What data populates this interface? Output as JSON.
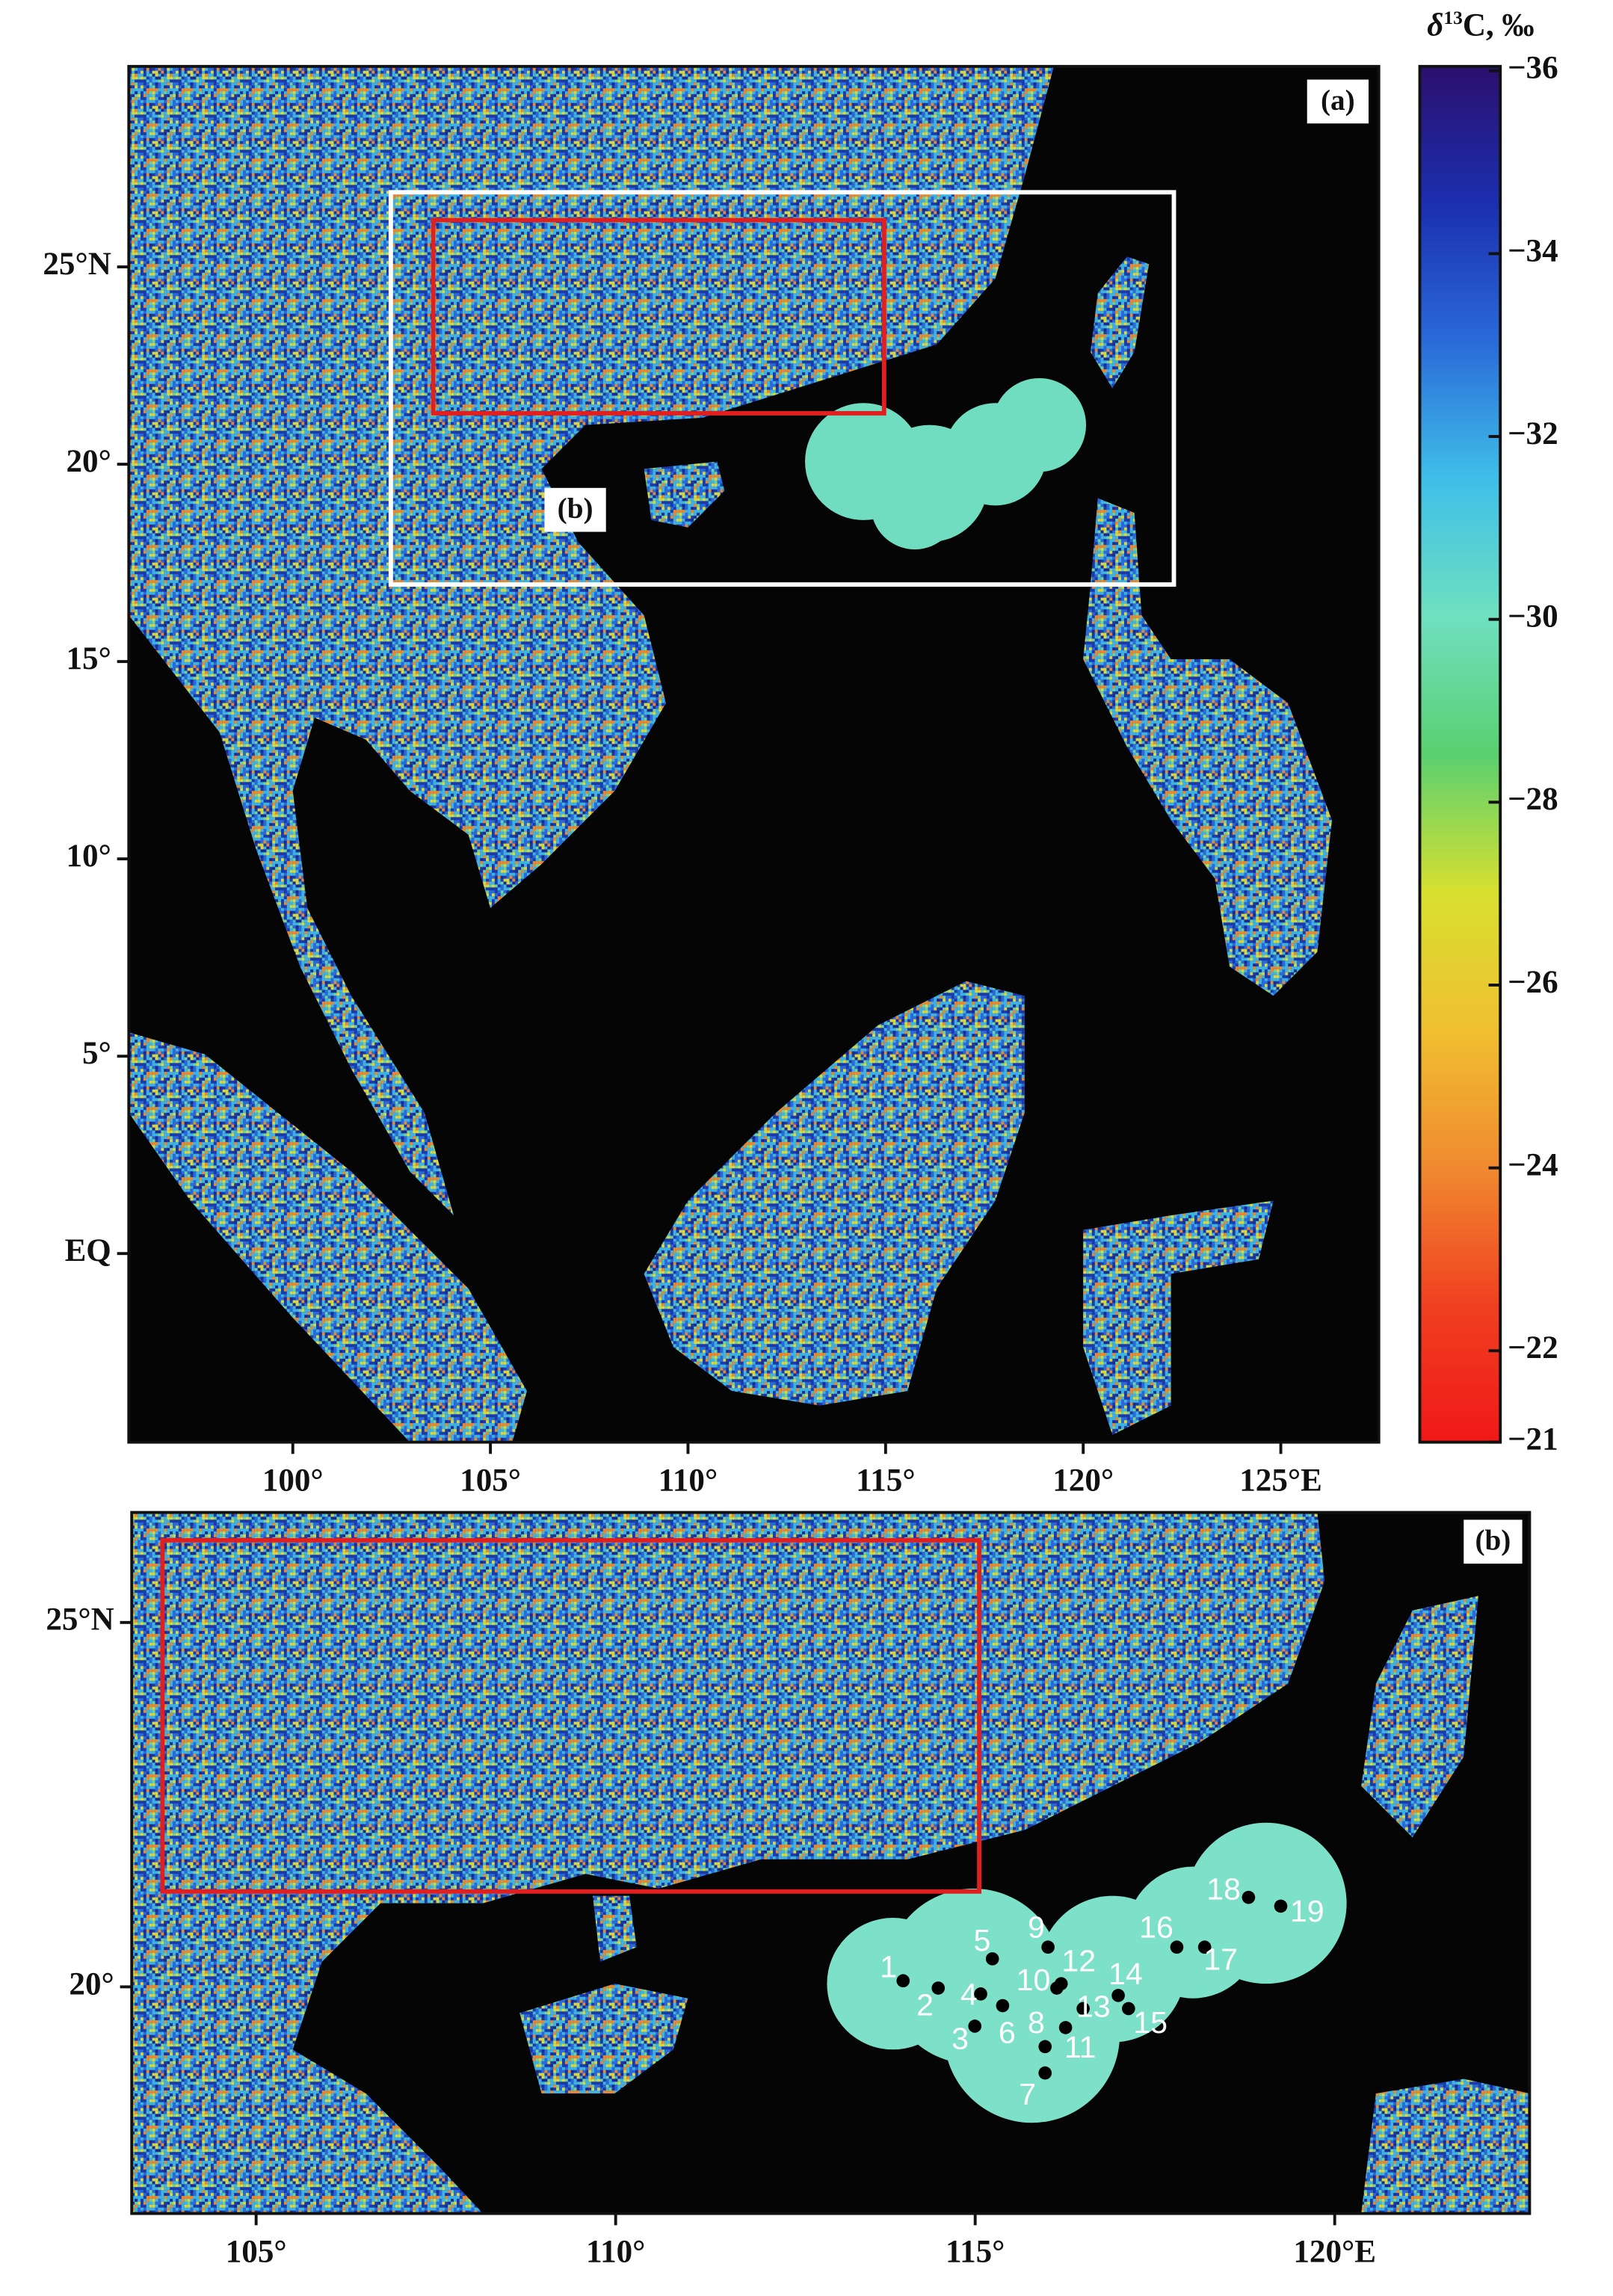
{
  "panel_a": {
    "label": "(a)",
    "inset_label": "(b)",
    "lon_range": [
      95.85,
      127.48
    ],
    "lat_range": [
      -4.78,
      30.08
    ],
    "lon_ticks": [
      {
        "value": 100,
        "label": "100°"
      },
      {
        "value": 105,
        "label": "105°"
      },
      {
        "value": 110,
        "label": "110°"
      },
      {
        "value": 115,
        "label": "115°"
      },
      {
        "value": 120,
        "label": "120°"
      },
      {
        "value": 125,
        "label": "125°E"
      }
    ],
    "lat_ticks": [
      {
        "value": 25,
        "label": "25°N"
      },
      {
        "value": 20,
        "label": "20°"
      },
      {
        "value": 15,
        "label": "15°"
      },
      {
        "value": 10,
        "label": "10°"
      },
      {
        "value": 5,
        "label": "5°"
      },
      {
        "value": 0,
        "label": "EQ"
      }
    ]
  },
  "colorbar": {
    "label": {
      "symbol": "δ",
      "superscript": "13",
      "rest": "C, ‰"
    },
    "range": [
      -36,
      -21
    ],
    "colors": [
      "#2b0f6e",
      "#1b2fb0",
      "#2a6ad8",
      "#3fbfe8",
      "#6fe0c0",
      "#5ad070",
      "#d8e030",
      "#f0c030",
      "#f08a30",
      "#f04020",
      "#f01818"
    ],
    "ticks": [
      {
        "value": -36,
        "label": "−36"
      },
      {
        "value": -34,
        "label": "−34"
      },
      {
        "value": -32,
        "label": "−32"
      },
      {
        "value": -30,
        "label": "−30"
      },
      {
        "value": -28,
        "label": "−28"
      },
      {
        "value": -26,
        "label": "−26"
      },
      {
        "value": -24,
        "label": "−24"
      },
      {
        "value": -22,
        "label": "−22"
      },
      {
        "value": -21,
        "label": "−21"
      }
    ]
  },
  "panel_b": {
    "label": "(b)",
    "lon_range": [
      103.27,
      122.71
    ],
    "lat_range": [
      16.89,
      26.51
    ],
    "lon_ticks": [
      {
        "value": 105,
        "label": "105°"
      },
      {
        "value": 110,
        "label": "110°"
      },
      {
        "value": 115,
        "label": "115°"
      },
      {
        "value": 120,
        "label": "120°E"
      }
    ],
    "lat_ticks": [
      {
        "value": 25,
        "label": "25°N"
      },
      {
        "value": 20,
        "label": "20°"
      }
    ],
    "stations": [
      "1",
      "2",
      "3",
      "4",
      "5",
      "6",
      "7",
      "8",
      "9",
      "10",
      "11",
      "12",
      "13",
      "14",
      "15",
      "16",
      "17",
      "18",
      "19"
    ]
  }
}
